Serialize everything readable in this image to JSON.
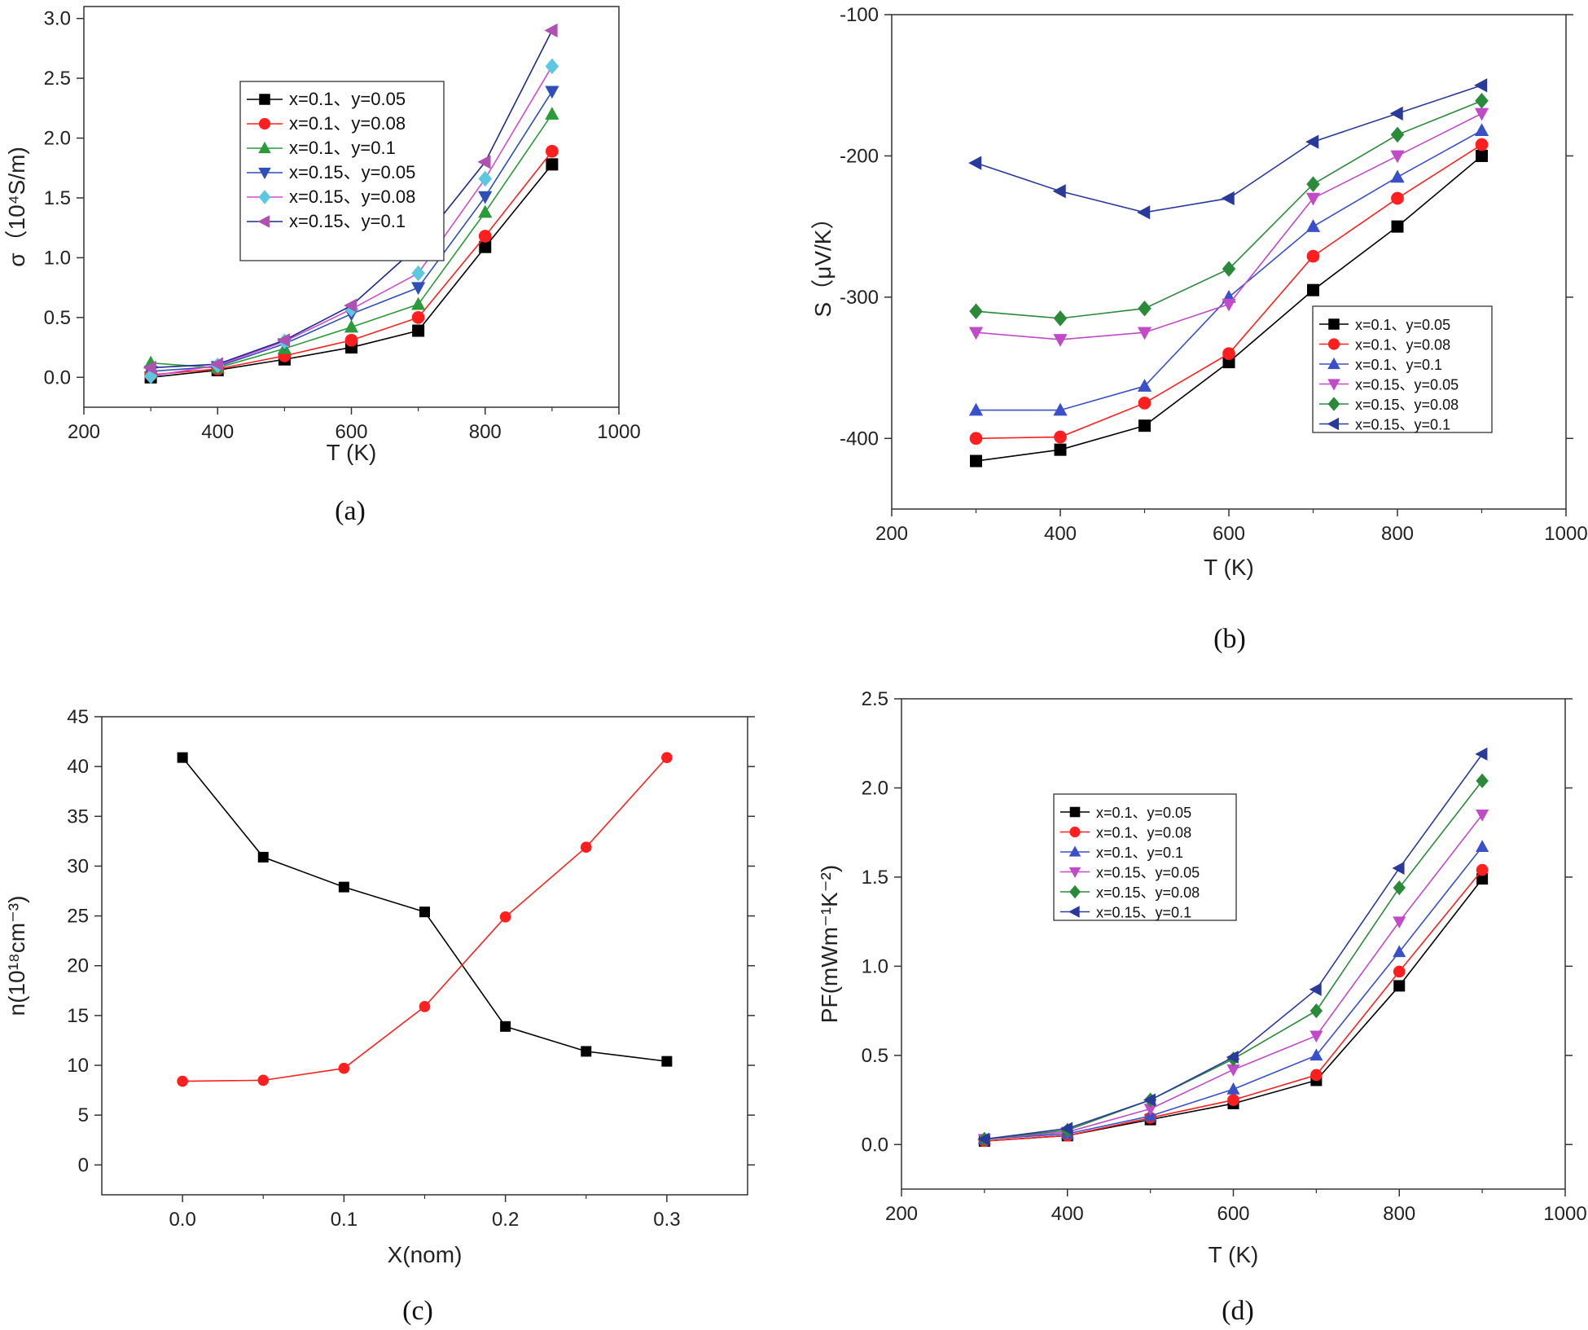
{
  "chart_data": [
    {
      "type": "line",
      "caption": "(a)",
      "xlabel": "T (K)",
      "ylabel": "σ（10⁴S/m)",
      "xlim": [
        200,
        1000
      ],
      "ylim": [
        -0.25,
        3.1
      ],
      "xticks": [
        200,
        400,
        600,
        800,
        1000
      ],
      "yticks": [
        0.0,
        0.5,
        1.0,
        1.5,
        2.0,
        2.5,
        3.0
      ],
      "ytick_labels": [
        "0.0",
        "0.5",
        "1.0",
        "1.5",
        "2.0",
        "2.5",
        "3.0"
      ],
      "x": [
        300,
        400,
        500,
        600,
        700,
        800,
        900
      ],
      "legend_position": "upper-left",
      "series": [
        {
          "name": "x=0.1、y=0.05",
          "color": "#000000",
          "marker": "square",
          "values": [
            0.0,
            0.06,
            0.15,
            0.25,
            0.39,
            1.09,
            1.78
          ]
        },
        {
          "name": "x=0.1、y=0.08",
          "color": "#ff1f1f",
          "marker": "circle",
          "values": [
            0.02,
            0.07,
            0.18,
            0.31,
            0.5,
            1.18,
            1.89
          ]
        },
        {
          "name": "x=0.1、y=0.1",
          "color": "#2e4fb8",
          "marker": "triangle-up",
          "values": [
            0.12,
            0.08,
            0.24,
            0.42,
            0.61,
            1.38,
            2.2
          ]
        },
        {
          "name": "x=0.15、y=0.05",
          "color": "#d04ad0",
          "marker": "triangle-down",
          "values": [
            0.05,
            0.09,
            0.28,
            0.53,
            0.75,
            1.51,
            2.39
          ]
        },
        {
          "name": "x=0.15、y=0.08",
          "color": "#2a9a3a",
          "marker": "diamond",
          "values": [
            0.01,
            0.1,
            0.3,
            0.57,
            0.87,
            1.66,
            2.6
          ]
        },
        {
          "name": "x=0.15、y=0.1",
          "color": "#1e2a8c",
          "marker": "triangle-left",
          "values": [
            0.08,
            0.11,
            0.31,
            0.6,
            1.1,
            1.8,
            2.9
          ]
        }
      ],
      "line_colors": [
        "#000000",
        "#ff1f1f",
        "#2a9a3a",
        "#2e4fb8",
        "#d04ad0",
        "#1e2a8c"
      ],
      "marker_colors": [
        "#000000",
        "#ff1f1f",
        "#2a9a3a",
        "#2e4fb8",
        "#5bc8e0",
        "#b050b0"
      ]
    },
    {
      "type": "line",
      "caption": "(b)",
      "xlabel": "T (K)",
      "ylabel": "S（μV/K）",
      "xlim": [
        200,
        1000
      ],
      "ylim": [
        -450,
        -100
      ],
      "xticks": [
        200,
        400,
        600,
        800,
        1000
      ],
      "yticks": [
        -400,
        -300,
        -200,
        -100
      ],
      "ytick_labels": [
        "-400",
        "-300",
        "-200",
        "-100"
      ],
      "x": [
        300,
        400,
        500,
        600,
        700,
        800,
        900
      ],
      "legend_position": "lower-right",
      "series": [
        {
          "name": "x=0.1、y=0.05",
          "color": "#000000",
          "marker": "square",
          "values": [
            -416,
            -408,
            -391,
            -346,
            -295,
            -250,
            -200
          ]
        },
        {
          "name": "x=0.1、y=0.08",
          "color": "#ff1f1f",
          "marker": "circle",
          "values": [
            -400,
            -399,
            -375,
            -340,
            -271,
            -230,
            -192
          ]
        },
        {
          "name": "x=0.1、y=0.1",
          "color": "#3a50c8",
          "marker": "triangle-up",
          "values": [
            -380,
            -380,
            -363,
            -300,
            -250,
            -215,
            -182
          ]
        },
        {
          "name": "x=0.15、y=0.05",
          "color": "#c04ac8",
          "marker": "triangle-down",
          "values": [
            -325,
            -330,
            -325,
            -305,
            -230,
            -200,
            -170
          ]
        },
        {
          "name": "x=0.15、y=0.08",
          "color": "#2a8a3a",
          "marker": "diamond",
          "values": [
            -310,
            -315,
            -308,
            -280,
            -220,
            -185,
            -161
          ]
        },
        {
          "name": "x=0.15、y=0.1",
          "color": "#2a3a9a",
          "marker": "triangle-left",
          "values": [
            -205,
            -225,
            -240,
            -230,
            -190,
            -170,
            -150
          ]
        }
      ]
    },
    {
      "type": "line",
      "caption": "(c)",
      "xlabel": "X(nom)",
      "ylabel": "n(10¹⁸cm⁻³)",
      "xlim": [
        -0.05,
        0.35
      ],
      "ylim": [
        -3,
        45
      ],
      "xticks": [
        0.0,
        0.1,
        0.2,
        0.3
      ],
      "xtick_labels": [
        "0.0",
        "0.1",
        "0.2",
        "0.3"
      ],
      "yticks": [
        0,
        5,
        10,
        15,
        20,
        25,
        30,
        35,
        40,
        45
      ],
      "ytick_labels": [
        "0",
        "5",
        "10",
        "15",
        "20",
        "25",
        "30",
        "35",
        "40",
        "45"
      ],
      "x": [
        0.0,
        0.05,
        0.1,
        0.15,
        0.2,
        0.25,
        0.3
      ],
      "series": [
        {
          "name": "black",
          "color": "#000000",
          "marker": "square",
          "values": [
            40.9,
            30.9,
            27.9,
            25.4,
            13.9,
            11.4,
            10.4
          ]
        },
        {
          "name": "red",
          "color": "#ff1f1f",
          "marker": "circle",
          "values": [
            8.4,
            8.5,
            9.7,
            15.9,
            24.9,
            31.9,
            40.9
          ]
        }
      ]
    },
    {
      "type": "line",
      "caption": "(d)",
      "xlabel": "T (K)",
      "ylabel": "PF(mWm⁻¹K⁻²)",
      "xlim": [
        200,
        1000
      ],
      "ylim": [
        -0.25,
        2.5
      ],
      "xticks": [
        200,
        400,
        600,
        800,
        1000
      ],
      "yticks": [
        0.0,
        0.5,
        1.0,
        1.5,
        2.0,
        2.5
      ],
      "ytick_labels": [
        "0.0",
        "0.5",
        "1.0",
        "1.5",
        "2.0",
        "2.5"
      ],
      "x": [
        300,
        400,
        500,
        600,
        700,
        800,
        900
      ],
      "legend_position": "upper-left",
      "series": [
        {
          "name": "x=0.1、y=0.05",
          "color": "#000000",
          "marker": "square",
          "values": [
            0.02,
            0.05,
            0.14,
            0.23,
            0.36,
            0.89,
            1.49
          ]
        },
        {
          "name": "x=0.1、y=0.08",
          "color": "#ff1f1f",
          "marker": "circle",
          "values": [
            0.02,
            0.05,
            0.15,
            0.25,
            0.39,
            0.97,
            1.54
          ]
        },
        {
          "name": "x=0.1、y=0.1",
          "color": "#3a50c8",
          "marker": "triangle-up",
          "values": [
            0.03,
            0.06,
            0.16,
            0.31,
            0.5,
            1.08,
            1.67
          ]
        },
        {
          "name": "x=0.15、y=0.05",
          "color": "#c04ac8",
          "marker": "triangle-down",
          "values": [
            0.03,
            0.07,
            0.2,
            0.42,
            0.61,
            1.25,
            1.85
          ]
        },
        {
          "name": "x=0.15、y=0.08",
          "color": "#2a8a3a",
          "marker": "diamond",
          "values": [
            0.03,
            0.08,
            0.25,
            0.48,
            0.75,
            1.44,
            2.04
          ]
        },
        {
          "name": "x=0.15、y=0.1",
          "color": "#2a3a9a",
          "marker": "triangle-left",
          "values": [
            0.03,
            0.09,
            0.25,
            0.49,
            0.87,
            1.55,
            2.19
          ]
        }
      ]
    }
  ]
}
